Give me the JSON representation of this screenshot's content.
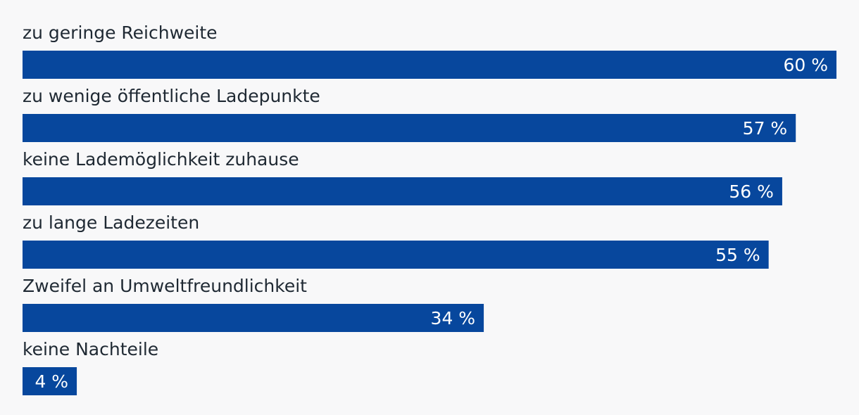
{
  "chart_data": {
    "type": "bar",
    "orientation": "horizontal",
    "categories": [
      "zu geringe Reichweite",
      "zu wenige öffentliche Ladepunkte",
      "keine Lademöglichkeit zuhause",
      "zu lange Ladezeiten",
      "Zweifel an Umweltfreundlichkeit",
      "keine Nachteile"
    ],
    "values": [
      60,
      57,
      56,
      55,
      34,
      4
    ],
    "value_labels": [
      "60 %",
      "57 %",
      "56 %",
      "55 %",
      "34 %",
      "4 %"
    ],
    "unit": "%",
    "xlim": [
      0,
      60
    ],
    "bar_color": "#07479d",
    "label_color": "#1f2933",
    "value_label_color": "#ffffff",
    "background": "#f8f8f9",
    "grid": false,
    "legend": "none"
  }
}
